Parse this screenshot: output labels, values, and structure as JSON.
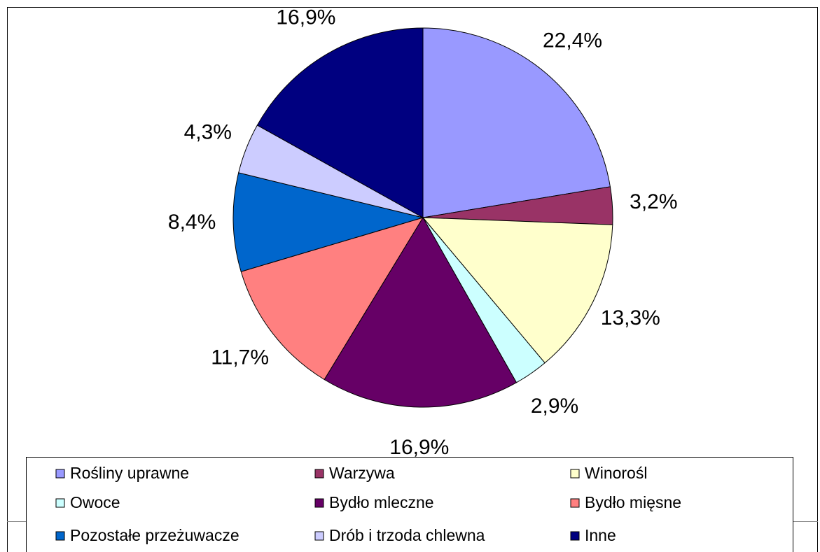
{
  "chart_data": {
    "type": "pie",
    "categories": [
      "Rośliny uprawne",
      "Warzywa",
      "Winorośl",
      "Owoce",
      "Bydło mleczne",
      "Bydło mięsne",
      "Pozostałe przeżuwacze",
      "Drób i trzoda chlewna",
      "Inne"
    ],
    "values": [
      22.4,
      3.2,
      13.3,
      2.9,
      16.9,
      11.7,
      8.4,
      4.3,
      16.9
    ],
    "value_labels": [
      "22,4%",
      "3,2%",
      "13,3%",
      "2,9%",
      "16,9%",
      "11,7%",
      "8,4%",
      "4,3%",
      "16,9%"
    ],
    "colors": [
      "#9999ff",
      "#993366",
      "#ffffcc",
      "#ccffff",
      "#660066",
      "#ff8080",
      "#0066cc",
      "#ccccff",
      "#000080"
    ],
    "legend": "bottom"
  }
}
